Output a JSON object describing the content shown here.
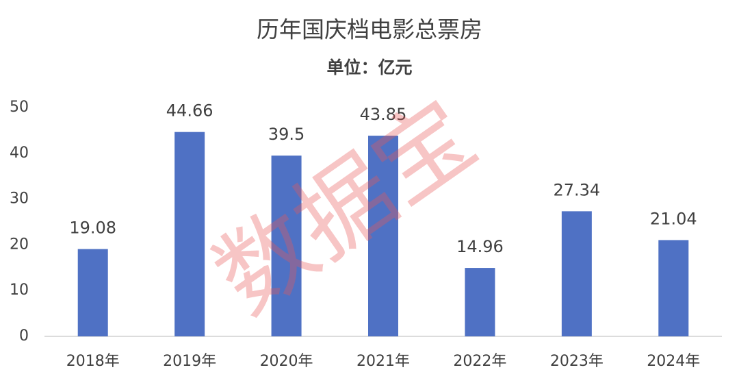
{
  "chart_data": {
    "type": "bar",
    "title": "历年国庆档电影总票房",
    "subtitle": "单位：亿元",
    "categories": [
      "2018年",
      "2019年",
      "2020年",
      "2021年",
      "2022年",
      "2023年",
      "2024年"
    ],
    "values": [
      19.08,
      44.66,
      39.5,
      43.85,
      14.96,
      27.34,
      21.04
    ],
    "color": "#4f71c4",
    "ylim": [
      0,
      50
    ],
    "yticks": [
      0,
      10,
      20,
      30,
      40,
      50
    ],
    "grid": false,
    "watermark": "数据宝"
  }
}
